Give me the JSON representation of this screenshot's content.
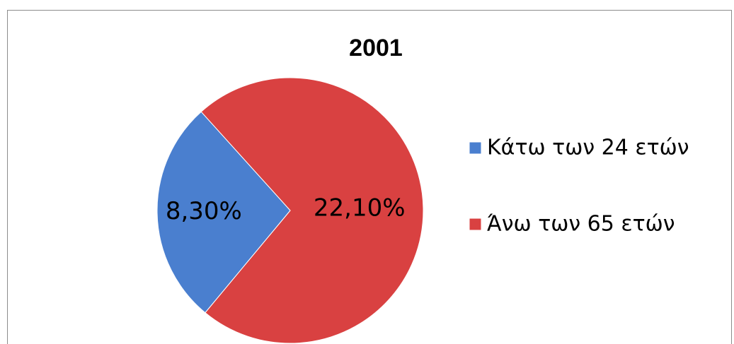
{
  "chart_data": {
    "type": "pie",
    "title": "2001",
    "categories": [
      "Κάτω των 24 ετών",
      "Άνω των 65 ετών"
    ],
    "values": [
      8.3,
      22.1
    ],
    "value_labels": [
      "8,30%",
      "22,10%"
    ],
    "colors": [
      "#4a7fcf",
      "#d94141"
    ],
    "legend": "right"
  }
}
